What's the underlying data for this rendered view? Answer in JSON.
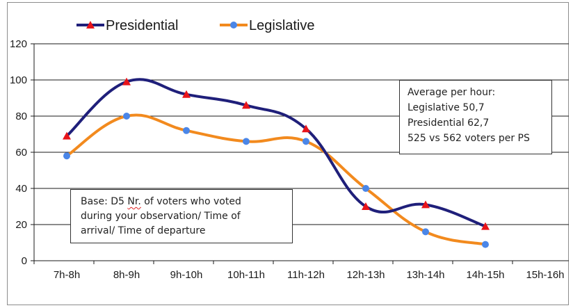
{
  "chart_data": {
    "type": "line",
    "title": "",
    "xlabel": "",
    "ylabel": "",
    "ylim": [
      0,
      120
    ],
    "yticks": [
      0,
      20,
      40,
      60,
      80,
      100,
      120
    ],
    "grid": true,
    "legend_position": "top-left",
    "categories": [
      "7h-8h",
      "8h-9h",
      "9h-10h",
      "10h-11h",
      "11h-12h",
      "12h-13h",
      "13h-14h",
      "14h-15h",
      "15h-16h"
    ],
    "series": [
      {
        "name": "Presidential",
        "color": "#1f1f7a",
        "marker": "triangle",
        "marker_color": "#e8141a",
        "values": [
          69,
          99,
          92,
          86,
          73,
          30,
          31,
          19,
          null
        ]
      },
      {
        "name": "Legislative",
        "color": "#f28a1e",
        "marker": "circle",
        "marker_color": "#4a86e8",
        "values": [
          58,
          80,
          72,
          66,
          66,
          40,
          16,
          9,
          null
        ]
      }
    ]
  },
  "annotations": {
    "average": {
      "title": "Average per hour:",
      "line1": "Legislative 50,7",
      "line2": "Presidential 62,7",
      "line3": "525 vs 562 voters per PS"
    },
    "base": {
      "prefix": "Base: D5 ",
      "typo_word": "Nr.",
      "suffix": " of voters who voted",
      "line2": "during your observation/ Time of",
      "line3": "arrival/ Time of departure"
    }
  }
}
